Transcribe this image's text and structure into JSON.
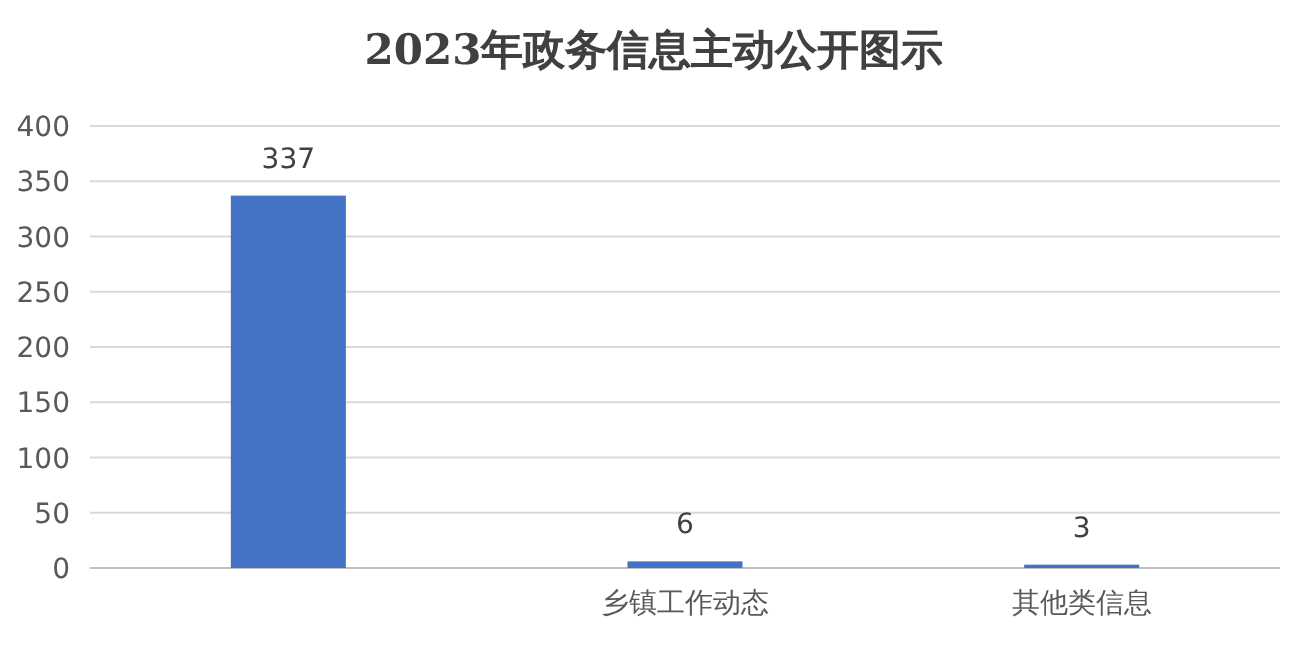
{
  "chart_data": {
    "type": "bar",
    "title": "2023年政务信息主动公开图示",
    "categories": [
      null,
      "乡镇工作动态",
      "其他类信息"
    ],
    "values": [
      337,
      6,
      3
    ],
    "color": "#4472c4",
    "ylim": [
      0,
      400
    ],
    "yticks": [
      0,
      50,
      100,
      150,
      200,
      250,
      300,
      350,
      400
    ],
    "grid": "y",
    "data_labels": true
  }
}
